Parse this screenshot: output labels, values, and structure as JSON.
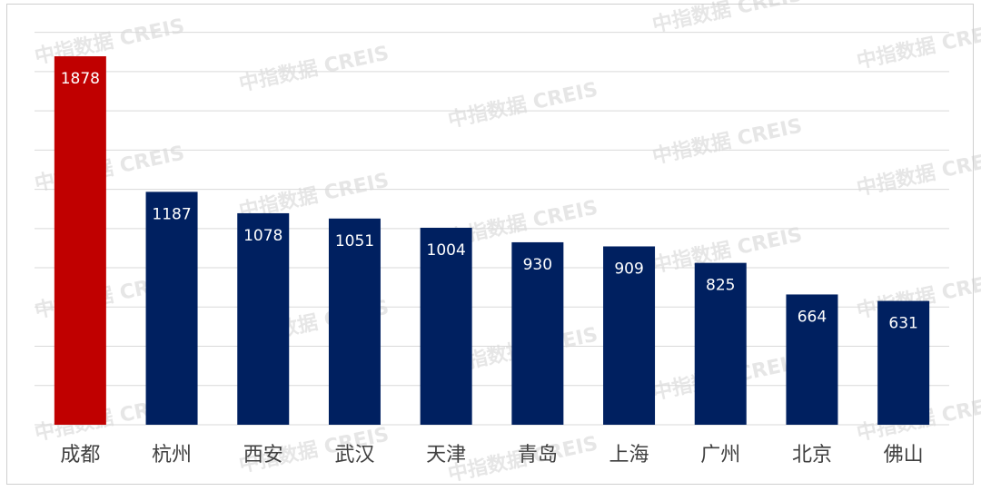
{
  "watermark": "中指数据 CREIS",
  "colors": {
    "highlight": "#c00000",
    "bar": "#002060",
    "gridline": "#d9d9d9",
    "label": "#404040"
  },
  "chart_data": {
    "type": "bar",
    "categories": [
      "成都",
      "杭州",
      "西安",
      "武汉",
      "天津",
      "青岛",
      "上海",
      "广州",
      "北京",
      "佛山"
    ],
    "values": [
      1878,
      1187,
      1078,
      1051,
      1004,
      930,
      909,
      825,
      664,
      631
    ],
    "highlight_index": 0,
    "ylim": [
      0,
      2000
    ],
    "gridlines": true,
    "data_labels": true,
    "legend": "none"
  }
}
